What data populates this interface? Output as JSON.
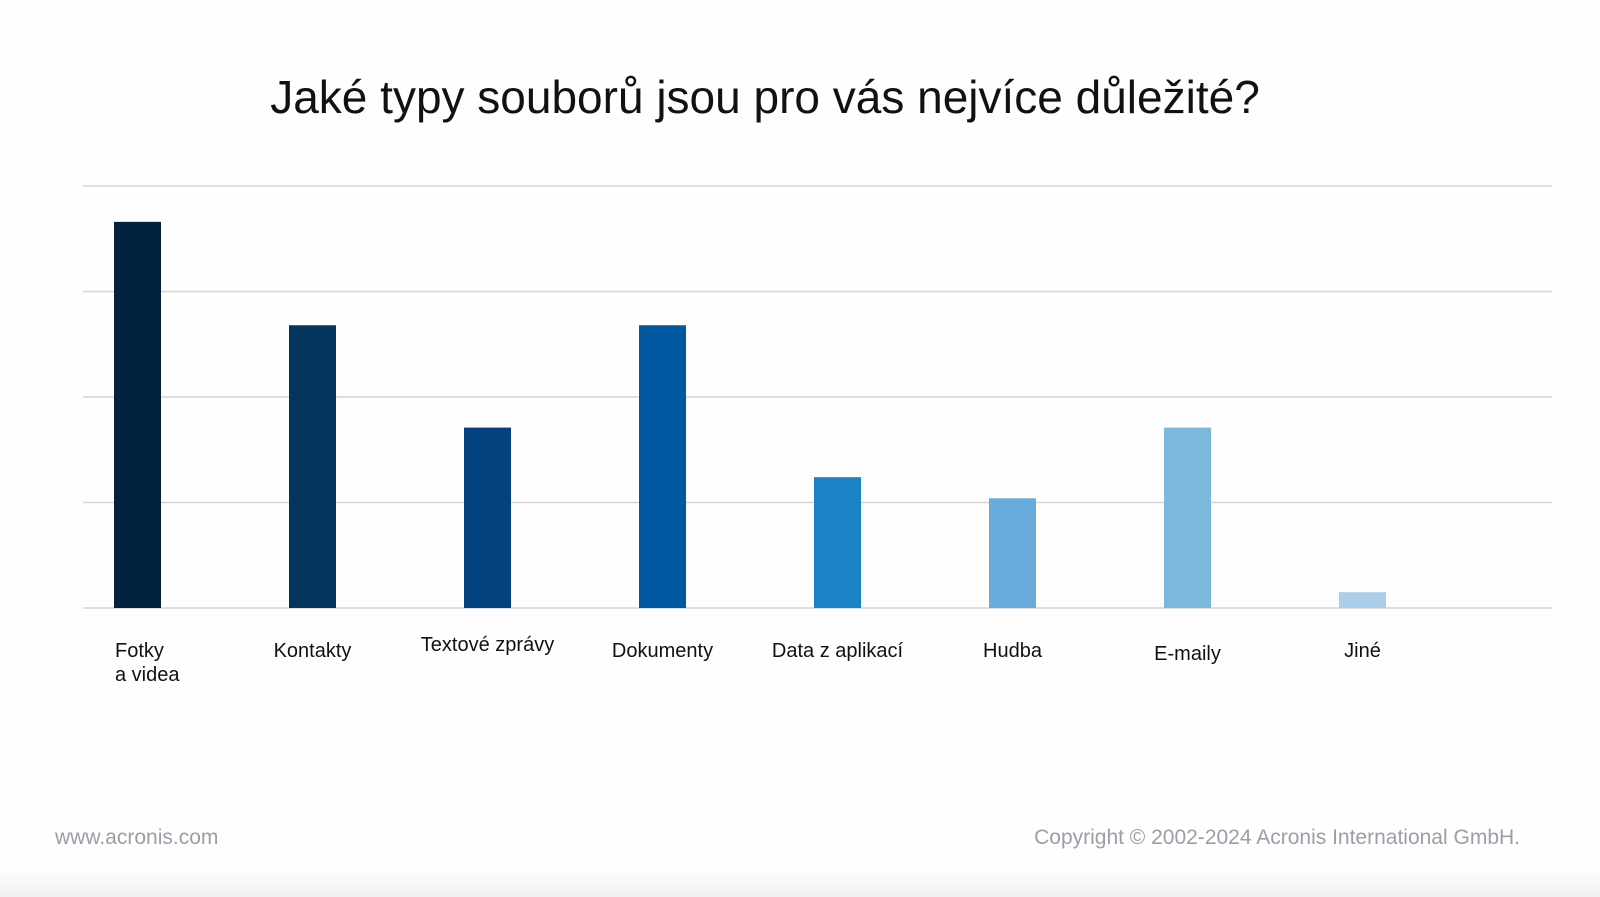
{
  "chart_data": {
    "type": "bar",
    "title": "Jaké typy souborů jsou pro vás nejvíce důležité?",
    "categories": [
      "Fotky\na videa",
      "Kontakty",
      "Textové zprávy",
      "Dokumenty",
      "Data z aplikací",
      "Hudba",
      "E-maily",
      "Jiné"
    ],
    "values": [
      3.66,
      2.68,
      1.71,
      2.68,
      1.24,
      1.04,
      1.71,
      0.15
    ],
    "colors": [
      "#03223f",
      "#02345d",
      "#03427e",
      "#0058a0",
      "#1b83c5",
      "#68abdd",
      "#7bb8dc",
      "#a9ceeb"
    ],
    "ylim": [
      0,
      4
    ],
    "grid": true,
    "xlabel": "",
    "ylabel": ""
  },
  "footer": {
    "website": "www.acronis.com",
    "copyright": "Copyright © 2002-2024 Acronis International GmbH."
  }
}
